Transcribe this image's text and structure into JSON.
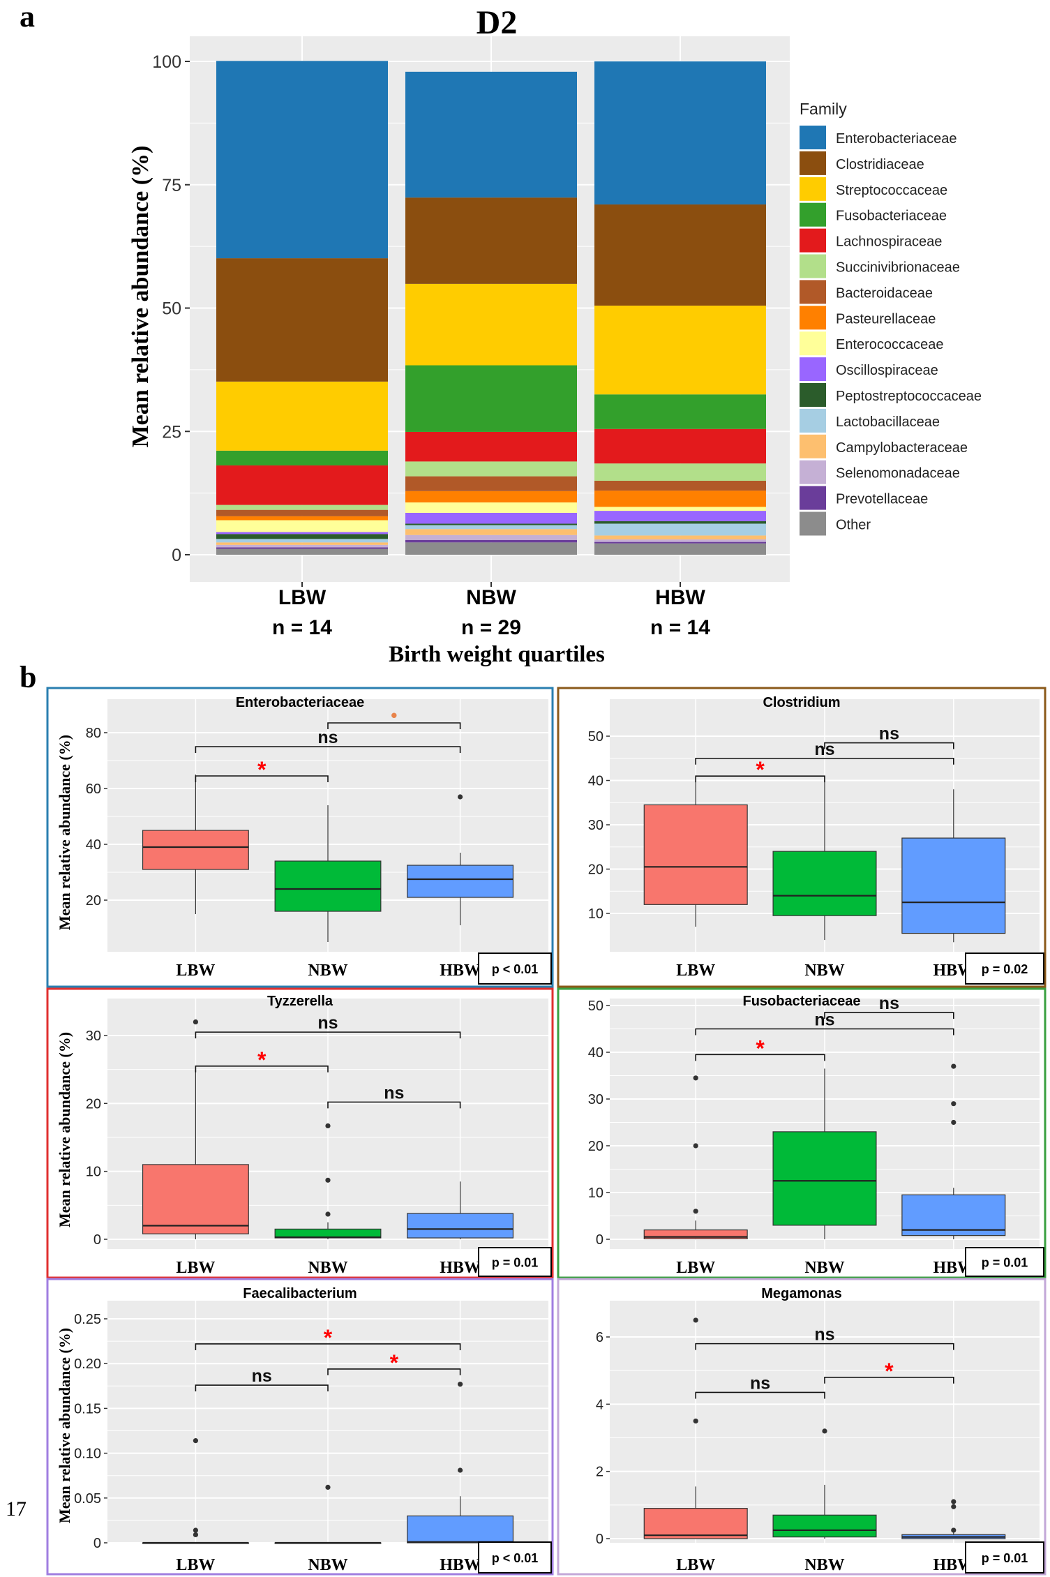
{
  "figure": {
    "panel_a_label": "a",
    "panel_b_label": "b",
    "page_number": "17"
  },
  "colors": {
    "panel_bg": "#ebebeb",
    "grid": "#ffffff",
    "box_lbw": "#f8766d",
    "box_nbw": "#00ba38",
    "box_hbw": "#619cff",
    "sig_star": "#ff0000",
    "dot_orange": "#e8834a",
    "frame_entero": "#2a7fb0",
    "frame_clost": "#8b5a1a",
    "frame_tyzz": "#e03030",
    "frame_fuso": "#3aa040",
    "frame_faec": "#a07ee0",
    "frame_mega": "#c3a8d8"
  },
  "chart_data": [
    {
      "id": "D2",
      "type": "stacked-bar",
      "title": "D2",
      "ylabel": "Mean relative abundance  (%)",
      "xlabel": "Birth weight quartiles",
      "ylim": [
        0,
        100
      ],
      "yticks": [
        "0",
        "25",
        "50",
        "75",
        "100"
      ],
      "ytick_values": [
        0,
        25,
        50,
        75,
        100
      ],
      "categories": [
        "LBW",
        "NBW",
        "HBW"
      ],
      "category_n": [
        "n = 14",
        "n = 29",
        "n = 14"
      ],
      "legend_title": "Family",
      "series": [
        {
          "name": "Other",
          "color": "#8c8c8c",
          "values": [
            1.2,
            2.5,
            2.3
          ]
        },
        {
          "name": "Prevotellaceae",
          "color": "#6a3d9a",
          "values": [
            0.3,
            0.5,
            0.3
          ]
        },
        {
          "name": "Selenomonadaceae",
          "color": "#c5b0d5",
          "values": [
            0.5,
            1.0,
            0.5
          ]
        },
        {
          "name": "Campylobacteraceae",
          "color": "#fdbf6f",
          "values": [
            0.5,
            1.2,
            0.8
          ]
        },
        {
          "name": "Lactobacillaceae",
          "color": "#a6cee3",
          "values": [
            0.7,
            0.8,
            2.4
          ]
        },
        {
          "name": "Peptostreptococcaceae",
          "color": "#2b5c2b",
          "values": [
            1.0,
            0.3,
            0.5
          ]
        },
        {
          "name": "Oscillospiraceae",
          "color": "#9966ff",
          "values": [
            0.4,
            2.2,
            2.1
          ]
        },
        {
          "name": "Enterococcaceae",
          "color": "#ffff99",
          "values": [
            2.4,
            2.1,
            0.8
          ]
        },
        {
          "name": "Pasteurellaceae",
          "color": "#ff8000",
          "values": [
            0.8,
            2.3,
            3.3
          ]
        },
        {
          "name": "Bacteroidaceae",
          "color": "#b15928",
          "values": [
            1.3,
            3.0,
            2.0
          ]
        },
        {
          "name": "Succinivibrionaceae",
          "color": "#b2df8a",
          "values": [
            1.0,
            3.0,
            3.5
          ]
        },
        {
          "name": "Lachnospiraceae",
          "color": "#e31a1c",
          "values": [
            8.0,
            6.0,
            7.0
          ]
        },
        {
          "name": "Fusobacteriaceae",
          "color": "#33a02c",
          "values": [
            3.0,
            13.5,
            7.0
          ]
        },
        {
          "name": "Streptococcaceae",
          "color": "#ffcc00",
          "values": [
            14.0,
            16.5,
            18.0
          ]
        },
        {
          "name": "Clostridiaceae",
          "color": "#8b4e0f",
          "values": [
            25.0,
            17.5,
            20.5
          ]
        },
        {
          "name": "Enterobacteriaceae",
          "color": "#1f77b4",
          "values": [
            40.0,
            25.5,
            29.0
          ]
        }
      ]
    },
    {
      "id": "entero",
      "type": "box",
      "title": "Enterobacteriaceae",
      "ylabel": "Mean relative abundance (%)",
      "ylim": [
        0,
        88
      ],
      "yticks": [
        "20",
        "40",
        "60",
        "80"
      ],
      "ytick_values": [
        20,
        40,
        60,
        80
      ],
      "categories": [
        "LBW",
        "NBW",
        "HBW"
      ],
      "boxes": [
        {
          "min": 15,
          "q1": 31,
          "median": 39,
          "q3": 45,
          "max": 65,
          "outliers": []
        },
        {
          "min": 5,
          "q1": 16,
          "median": 24,
          "q3": 34,
          "max": 54,
          "outliers": []
        },
        {
          "min": 11,
          "q1": 21,
          "median": 27.5,
          "q3": 32.5,
          "max": 37,
          "outliers": [
            57
          ]
        }
      ],
      "brackets": [
        {
          "from": 1,
          "to": 2,
          "y": 83.5,
          "label": "•",
          "kind": "dot"
        },
        {
          "from": 0,
          "to": 2,
          "y": 75,
          "label": "ns",
          "kind": "ns"
        },
        {
          "from": 0,
          "to": 1,
          "y": 64.5,
          "label": "*",
          "kind": "star"
        }
      ],
      "pvalue": "p < 0.01"
    },
    {
      "id": "clost",
      "type": "box",
      "title": "Clostridium",
      "ylabel": "",
      "ylim": [
        3,
        53
      ],
      "yticks": [
        "10",
        "20",
        "30",
        "40",
        "50"
      ],
      "ytick_values": [
        10,
        20,
        30,
        40,
        50
      ],
      "categories": [
        "LBW",
        "NBW",
        "HBW"
      ],
      "boxes": [
        {
          "min": 7,
          "q1": 12,
          "median": 20.5,
          "q3": 34.5,
          "max": 40,
          "outliers": []
        },
        {
          "min": 4,
          "q1": 9.5,
          "median": 14,
          "q3": 24,
          "max": 41,
          "outliers": []
        },
        {
          "min": 3.5,
          "q1": 5.5,
          "median": 12.5,
          "q3": 27,
          "max": 38,
          "outliers": []
        }
      ],
      "brackets": [
        {
          "from": 1,
          "to": 2,
          "y": 48.5,
          "label": "ns",
          "kind": "ns"
        },
        {
          "from": 0,
          "to": 2,
          "y": 45,
          "label": "ns",
          "kind": "ns"
        },
        {
          "from": 0,
          "to": 1,
          "y": 41,
          "label": "*",
          "kind": "star"
        }
      ],
      "pvalue": "p = 0.02"
    },
    {
      "id": "tyzz",
      "type": "box",
      "title": "Tyzzerella",
      "ylabel": "Mean relative abundance (%)",
      "ylim": [
        -0.5,
        34
      ],
      "yticks": [
        "0",
        "10",
        "20",
        "30"
      ],
      "ytick_values": [
        0,
        10,
        20,
        30
      ],
      "categories": [
        "LBW",
        "NBW",
        "HBW"
      ],
      "boxes": [
        {
          "min": 0,
          "q1": 0.8,
          "median": 2,
          "q3": 11,
          "max": 25,
          "outliers": [
            32
          ]
        },
        {
          "min": 0,
          "q1": 0.2,
          "median": 0.3,
          "q3": 1.5,
          "max": 2.5,
          "outliers": [
            3.7,
            8.7,
            16.7
          ]
        },
        {
          "min": 0,
          "q1": 0.2,
          "median": 1.5,
          "q3": 3.8,
          "max": 8.5,
          "outliers": []
        }
      ],
      "brackets": [
        {
          "from": 0,
          "to": 2,
          "y": 30.5,
          "label": "ns",
          "kind": "ns"
        },
        {
          "from": 0,
          "to": 1,
          "y": 25.5,
          "label": "*",
          "kind": "star"
        },
        {
          "from": 1,
          "to": 2,
          "y": 20.2,
          "label": "ns",
          "kind": "ns"
        }
      ],
      "pvalue": "p = 0.01"
    },
    {
      "id": "fuso",
      "type": "box",
      "title": "Fusobacteriaceae",
      "ylabel": "",
      "ylim": [
        -0.5,
        52
      ],
      "yticks": [
        "0",
        "10",
        "20",
        "30",
        "40",
        "50"
      ],
      "ytick_values": [
        0,
        10,
        20,
        30,
        40,
        50
      ],
      "categories": [
        "LBW",
        "NBW",
        "HBW"
      ],
      "boxes": [
        {
          "min": 0,
          "q1": 0.1,
          "median": 0.5,
          "q3": 2,
          "max": 4,
          "outliers": [
            6,
            20,
            34.5
          ]
        },
        {
          "min": 0,
          "q1": 3,
          "median": 12.5,
          "q3": 23,
          "max": 36.5,
          "outliers": []
        },
        {
          "min": 0,
          "q1": 0.8,
          "median": 2,
          "q3": 9.5,
          "max": 11,
          "outliers": [
            25,
            29,
            37
          ]
        }
      ],
      "brackets": [
        {
          "from": 1,
          "to": 2,
          "y": 48.5,
          "label": "ns",
          "kind": "ns"
        },
        {
          "from": 0,
          "to": 2,
          "y": 45,
          "label": "ns",
          "kind": "ns"
        },
        {
          "from": 0,
          "to": 1,
          "y": 39.5,
          "label": "*",
          "kind": "star"
        }
      ],
      "pvalue": "p = 0.01"
    },
    {
      "id": "faec",
      "type": "box",
      "title": "Faecalibacterium",
      "ylabel": "Mean relative abundance (%)",
      "ylim": [
        -0.008,
        0.255
      ],
      "yticks": [
        "0",
        "0.05",
        "0.10",
        "0.15",
        "0.20",
        "0.25"
      ],
      "ytick_values": [
        0,
        0.05,
        0.1,
        0.15,
        0.2,
        0.25
      ],
      "categories": [
        "LBW",
        "NBW",
        "HBW"
      ],
      "boxes": [
        {
          "min": 0,
          "q1": 0,
          "median": 0,
          "q3": 0,
          "max": 0,
          "outliers": [
            0.009,
            0.014,
            0.114
          ]
        },
        {
          "min": 0,
          "q1": 0,
          "median": 0,
          "q3": 0,
          "max": 0,
          "outliers": [
            0.062
          ]
        },
        {
          "min": 0,
          "q1": 0,
          "median": 0.001,
          "q3": 0.03,
          "max": 0.052,
          "outliers": [
            0.081,
            0.177
          ]
        }
      ],
      "brackets": [
        {
          "from": 0,
          "to": 2,
          "y": 0.222,
          "label": "*",
          "kind": "star"
        },
        {
          "from": 1,
          "to": 2,
          "y": 0.194,
          "label": "*",
          "kind": "star"
        },
        {
          "from": 0,
          "to": 1,
          "y": 0.176,
          "label": "ns",
          "kind": "ns"
        }
      ],
      "pvalue": "p < 0.01"
    },
    {
      "id": "mega",
      "type": "box",
      "title": "Megamonas",
      "ylabel": "",
      "ylim": [
        -0.2,
        7.1
      ],
      "yticks": [
        "0",
        "2",
        "4",
        "6"
      ],
      "ytick_values": [
        0,
        2,
        4,
        6
      ],
      "categories": [
        "LBW",
        "NBW",
        "HBW"
      ],
      "boxes": [
        {
          "min": 0,
          "q1": 0,
          "median": 0.1,
          "q3": 0.9,
          "max": 1.55,
          "outliers": [
            3.5,
            6.5
          ]
        },
        {
          "min": 0,
          "q1": 0.05,
          "median": 0.25,
          "q3": 0.7,
          "max": 1.6,
          "outliers": [
            3.2
          ]
        },
        {
          "min": 0,
          "q1": 0,
          "median": 0.05,
          "q3": 0.12,
          "max": 0.2,
          "outliers": [
            0.25,
            0.95,
            1.1
          ]
        }
      ],
      "brackets": [
        {
          "from": 0,
          "to": 2,
          "y": 5.8,
          "label": "ns",
          "kind": "ns"
        },
        {
          "from": 1,
          "to": 2,
          "y": 4.8,
          "label": "*",
          "kind": "star"
        },
        {
          "from": 0,
          "to": 1,
          "y": 4.35,
          "label": "ns",
          "kind": "ns"
        }
      ],
      "pvalue": "p = 0.01"
    }
  ]
}
